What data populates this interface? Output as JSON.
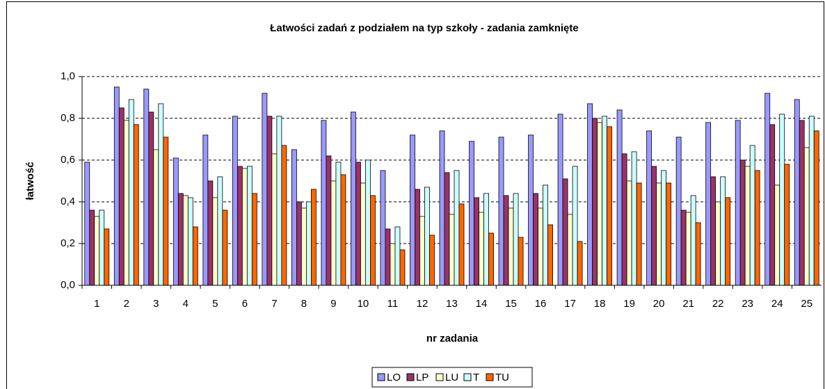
{
  "chart_data": {
    "type": "bar",
    "title": "Łatwości zadań z podziałem na typ szkoły - zadania zamknięte",
    "x_label": "nr zadania",
    "y_label": "łatwość",
    "categories": [
      "1",
      "2",
      "3",
      "4",
      "5",
      "6",
      "7",
      "8",
      "9",
      "10",
      "11",
      "12",
      "13",
      "14",
      "15",
      "16",
      "17",
      "18",
      "19",
      "20",
      "21",
      "22",
      "23",
      "24",
      "25"
    ],
    "series": [
      {
        "name": "LO",
        "color": "#9999ff",
        "values": [
          0.59,
          0.95,
          0.94,
          0.61,
          0.72,
          0.81,
          0.92,
          0.65,
          0.79,
          0.83,
          0.55,
          0.72,
          0.74,
          0.69,
          0.71,
          0.72,
          0.82,
          0.87,
          0.84,
          0.74,
          0.71,
          0.78,
          0.79,
          0.92,
          0.89
        ]
      },
      {
        "name": "LP",
        "color": "#993366",
        "values": [
          0.36,
          0.85,
          0.83,
          0.44,
          0.5,
          0.57,
          0.81,
          0.4,
          0.62,
          0.59,
          0.27,
          0.46,
          0.54,
          0.42,
          0.43,
          0.44,
          0.51,
          0.8,
          0.63,
          0.57,
          0.36,
          0.52,
          0.6,
          0.77,
          0.79
        ]
      },
      {
        "name": "LU",
        "color": "#ffffcc",
        "values": [
          0.33,
          0.79,
          0.65,
          0.43,
          0.42,
          0.56,
          0.63,
          0.37,
          0.5,
          0.49,
          0.2,
          0.33,
          0.34,
          0.35,
          0.37,
          0.37,
          0.34,
          0.78,
          0.5,
          0.49,
          0.35,
          0.4,
          0.57,
          0.48,
          0.66
        ]
      },
      {
        "name": "T",
        "color": "#ccffff",
        "values": [
          0.36,
          0.89,
          0.87,
          0.42,
          0.52,
          0.57,
          0.81,
          0.4,
          0.59,
          0.6,
          0.28,
          0.47,
          0.55,
          0.44,
          0.44,
          0.48,
          0.57,
          0.81,
          0.64,
          0.55,
          0.43,
          0.52,
          0.67,
          0.82,
          0.81
        ]
      },
      {
        "name": "TU",
        "color": "#ff6600",
        "values": [
          0.27,
          0.77,
          0.71,
          0.28,
          0.36,
          0.44,
          0.67,
          0.46,
          0.53,
          0.43,
          0.17,
          0.24,
          0.39,
          0.25,
          0.23,
          0.29,
          0.21,
          0.76,
          0.49,
          0.49,
          0.3,
          0.42,
          0.55,
          0.58,
          0.74
        ]
      }
    ],
    "ylim": [
      0,
      1
    ],
    "yticks": [
      {
        "value": 0,
        "label": "0,0"
      },
      {
        "value": 0.2,
        "label": "0,2"
      },
      {
        "value": 0.4,
        "label": "0,4"
      },
      {
        "value": 0.6,
        "label": "0,6"
      },
      {
        "value": 0.8,
        "label": "0,8"
      },
      {
        "value": 1,
        "label": "1,0"
      }
    ],
    "grid": true,
    "legend": "bottom"
  }
}
